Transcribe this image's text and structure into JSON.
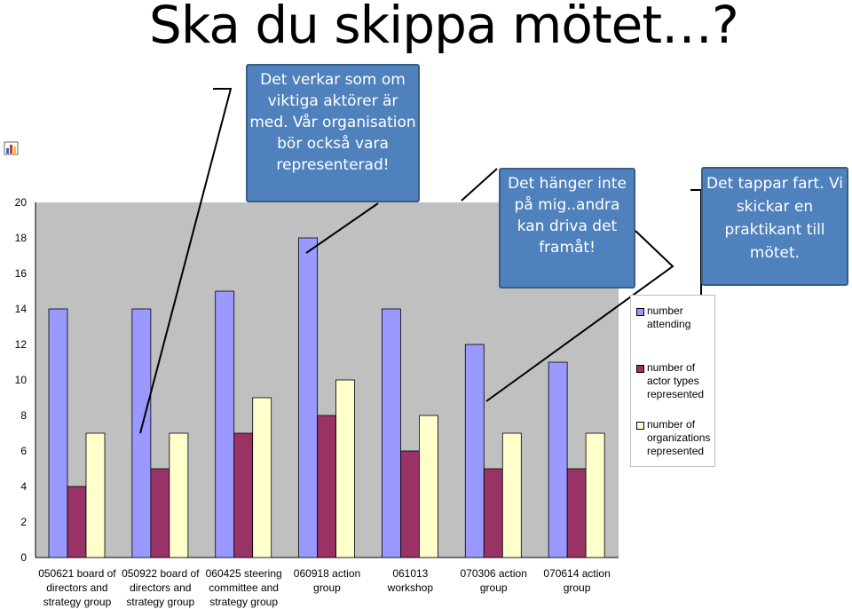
{
  "slide": {
    "title": "Ska du skippa mötet…?"
  },
  "callouts": [
    "Det verkar som om viktiga aktörer är med. Vår organisation bör också vara representerad!",
    "Det hänger inte på mig..andra kan driva det framåt!",
    "Det tappar fart. Vi skickar en praktikant till mötet."
  ],
  "colors": {
    "callout_fill": "#4f81bd",
    "callout_border": "#385d8a",
    "series_1": "#9999ff",
    "series_2": "#993366",
    "series_3": "#ffffcc"
  },
  "icons": [
    "chart-icon"
  ],
  "chart_data": {
    "type": "bar",
    "categories": [
      "050621 board of directors and strategy group",
      "050922 board of directors and strategy group",
      "060425 steering committee and strategy group",
      "060918 action group",
      "061013 workshop",
      "070306 action group",
      "070614 action group"
    ],
    "category_lines": [
      [
        "050621 board of",
        "directors and",
        "strategy group"
      ],
      [
        "050922 board of",
        "directors and",
        "strategy group"
      ],
      [
        "060425 steering",
        "committee and",
        "strategy group"
      ],
      [
        "060918 action",
        "group"
      ],
      [
        "061013",
        "workshop"
      ],
      [
        "070306 action",
        "group"
      ],
      [
        "070614 action",
        "group"
      ]
    ],
    "series": [
      {
        "name": "number attending",
        "values": [
          14,
          14,
          15,
          18,
          14,
          12,
          11
        ]
      },
      {
        "name": "number of actor types represented",
        "values": [
          4,
          5,
          7,
          8,
          6,
          5,
          5
        ]
      },
      {
        "name": "number of organizations represented",
        "values": [
          7,
          7,
          9,
          10,
          8,
          7,
          7
        ]
      }
    ],
    "yticks": [
      "0",
      "2",
      "4",
      "6",
      "8",
      "10",
      "12",
      "14",
      "16",
      "18",
      "20"
    ],
    "ylim": [
      0,
      20
    ],
    "grid": false,
    "legend": "right"
  }
}
